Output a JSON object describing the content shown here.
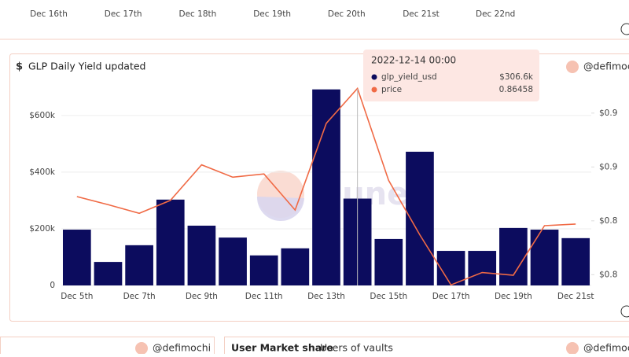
{
  "top_axis_labels": [
    "Dec 16th",
    "Dec 17th",
    "Dec 18th",
    "Dec 19th",
    "Dec 20th",
    "Dec 21st",
    "Dec 22nd"
  ],
  "author": "@defimochi",
  "bottom_left": {
    "author": "@defimochi"
  },
  "bottom_right": {
    "title": "User Market share",
    "tab": "Users of vaults",
    "author": "@defimochi"
  },
  "chart_data": {
    "type": "bar_line",
    "title": "GLP Daily Yield updated",
    "title_icon": "$",
    "watermark": "Dune",
    "categories": [
      "Dec 5th",
      null,
      "Dec 7th",
      null,
      "Dec 9th",
      null,
      "Dec 11th",
      null,
      "Dec 13th",
      null,
      "Dec 15th",
      null,
      "Dec 17th",
      null,
      "Dec 19th",
      null,
      "Dec 21st"
    ],
    "series": [
      {
        "name": "glp_yield_usd",
        "type": "bar",
        "color": "#0c0c5e",
        "values": [
          197000,
          83000,
          142000,
          303000,
          211000,
          169000,
          106000,
          131000,
          692000,
          306600,
          164000,
          472000,
          122000,
          122000,
          203000,
          197000,
          167000
        ],
        "value_labels": [
          null,
          null,
          null,
          null,
          null,
          null,
          null,
          null,
          null,
          "$306.6k",
          null,
          null,
          null,
          null,
          null,
          null,
          null
        ]
      },
      {
        "name": "price",
        "type": "line",
        "axis": "y2",
        "color": "#f06a45",
        "values": [
          0.8445,
          0.843,
          0.8414,
          0.8438,
          0.8504,
          0.8481,
          0.8487,
          0.842,
          0.8581,
          0.86458,
          0.8475,
          0.8374,
          0.8281,
          0.8304,
          0.8299,
          0.8391,
          0.8394
        ],
        "value_labels": [
          null,
          null,
          null,
          null,
          null,
          null,
          null,
          null,
          null,
          "0.86458",
          null,
          null,
          null,
          null,
          null,
          null,
          null
        ]
      }
    ],
    "tooltip_title": "2022-12-14 00:00",
    "ylim": [
      0,
      730000
    ],
    "yticks": [
      {
        "value": 0,
        "label": "0"
      },
      {
        "value": 200000,
        "label": "$200k"
      },
      {
        "value": 400000,
        "label": "$400k"
      },
      {
        "value": 600000,
        "label": "$600k"
      }
    ],
    "y2lim": [
      0.828,
      0.8664
    ],
    "y2ticks": [
      {
        "value": 0.83,
        "label": "$0.8"
      },
      {
        "value": 0.84,
        "label": "$0.8"
      },
      {
        "value": 0.85,
        "label": "$0.9"
      },
      {
        "value": 0.86,
        "label": "$0.9"
      }
    ],
    "grid": true
  }
}
